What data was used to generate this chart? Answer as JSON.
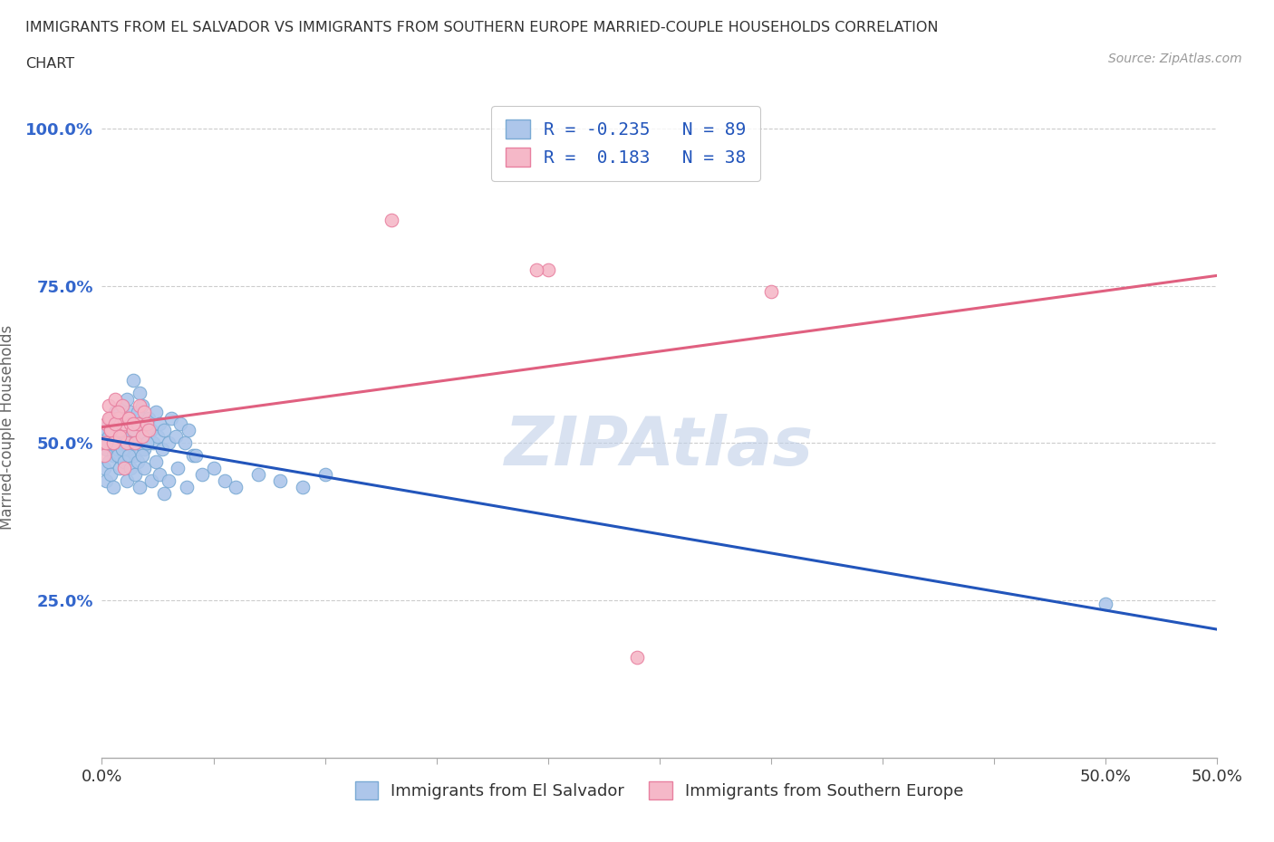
{
  "title_line1": "IMMIGRANTS FROM EL SALVADOR VS IMMIGRANTS FROM SOUTHERN EUROPE MARRIED-COUPLE HOUSEHOLDS CORRELATION",
  "title_line2": "CHART",
  "source": "Source: ZipAtlas.com",
  "el_salvador": {
    "R": -0.235,
    "N": 89,
    "color": "#adc6ea",
    "color_edge": "#7aaad4",
    "x": [
      0.001,
      0.002,
      0.002,
      0.003,
      0.003,
      0.004,
      0.004,
      0.005,
      0.005,
      0.006,
      0.006,
      0.007,
      0.007,
      0.008,
      0.008,
      0.009,
      0.009,
      0.01,
      0.01,
      0.011,
      0.011,
      0.012,
      0.012,
      0.013,
      0.013,
      0.014,
      0.015,
      0.015,
      0.016,
      0.016,
      0.017,
      0.017,
      0.018,
      0.018,
      0.019,
      0.02,
      0.02,
      0.021,
      0.022,
      0.023,
      0.024,
      0.025,
      0.026,
      0.027,
      0.028,
      0.03,
      0.031,
      0.033,
      0.035,
      0.037,
      0.039,
      0.041,
      0.001,
      0.002,
      0.003,
      0.004,
      0.005,
      0.006,
      0.007,
      0.008,
      0.009,
      0.01,
      0.011,
      0.012,
      0.013,
      0.014,
      0.015,
      0.016,
      0.017,
      0.018,
      0.019,
      0.02,
      0.022,
      0.024,
      0.026,
      0.028,
      0.03,
      0.034,
      0.038,
      0.042,
      0.045,
      0.05,
      0.055,
      0.06,
      0.07,
      0.08,
      0.09,
      0.1,
      0.45
    ],
    "y": [
      0.5,
      0.52,
      0.49,
      0.51,
      0.53,
      0.5,
      0.54,
      0.48,
      0.52,
      0.51,
      0.55,
      0.49,
      0.53,
      0.5,
      0.54,
      0.52,
      0.56,
      0.5,
      0.48,
      0.52,
      0.57,
      0.49,
      0.53,
      0.51,
      0.55,
      0.6,
      0.52,
      0.48,
      0.55,
      0.5,
      0.53,
      0.58,
      0.51,
      0.56,
      0.49,
      0.53,
      0.5,
      0.54,
      0.52,
      0.5,
      0.55,
      0.51,
      0.53,
      0.49,
      0.52,
      0.5,
      0.54,
      0.51,
      0.53,
      0.5,
      0.52,
      0.48,
      0.46,
      0.44,
      0.47,
      0.45,
      0.43,
      0.5,
      0.48,
      0.46,
      0.49,
      0.47,
      0.44,
      0.48,
      0.46,
      0.5,
      0.45,
      0.47,
      0.43,
      0.48,
      0.46,
      0.5,
      0.44,
      0.47,
      0.45,
      0.42,
      0.44,
      0.46,
      0.43,
      0.48,
      0.45,
      0.46,
      0.44,
      0.43,
      0.45,
      0.44,
      0.43,
      0.45,
      0.245
    ]
  },
  "southern_europe": {
    "R": 0.183,
    "N": 38,
    "color": "#f5b8c8",
    "color_edge": "#e880a0",
    "x": [
      0.001,
      0.002,
      0.003,
      0.004,
      0.004,
      0.005,
      0.006,
      0.007,
      0.008,
      0.009,
      0.01,
      0.011,
      0.012,
      0.013,
      0.014,
      0.015,
      0.016,
      0.017,
      0.018,
      0.019,
      0.02,
      0.021,
      0.001,
      0.002,
      0.003,
      0.004,
      0.005,
      0.006,
      0.007,
      0.008,
      0.01,
      0.012,
      0.014,
      0.13,
      0.2,
      0.3,
      0.195,
      0.24
    ],
    "y": [
      0.5,
      0.53,
      0.56,
      0.52,
      0.54,
      0.5,
      0.57,
      0.54,
      0.52,
      0.56,
      0.53,
      0.5,
      0.54,
      0.53,
      0.52,
      0.5,
      0.53,
      0.56,
      0.51,
      0.55,
      0.53,
      0.52,
      0.48,
      0.5,
      0.54,
      0.52,
      0.5,
      0.53,
      0.55,
      0.51,
      0.46,
      0.54,
      0.53,
      0.855,
      0.775,
      0.74,
      0.775,
      0.16
    ]
  },
  "xlim": [
    0.0,
    0.5
  ],
  "ylim": [
    0.0,
    1.05
  ],
  "xtick_positions": [
    0.0,
    0.05,
    0.1,
    0.15,
    0.2,
    0.25,
    0.3,
    0.35,
    0.4,
    0.45,
    0.5
  ],
  "xtick_labels_sparse": {
    "0.0": "0.0%",
    "0.5": "50.0%"
  },
  "yticks": [
    0.25,
    0.5,
    0.75,
    1.0
  ],
  "ytick_labels": [
    "25.0%",
    "50.0%",
    "75.0%",
    "100.0%"
  ],
  "ylabel": "Married-couple Households",
  "watermark": "ZIPAtlas",
  "watermark_color": "#c0d0e8",
  "legend_label_1": "Immigrants from El Salvador",
  "legend_label_2": "Immigrants from Southern Europe",
  "blue_color": "#2255bb",
  "pink_color": "#e06080",
  "ytick_color": "#3366cc"
}
